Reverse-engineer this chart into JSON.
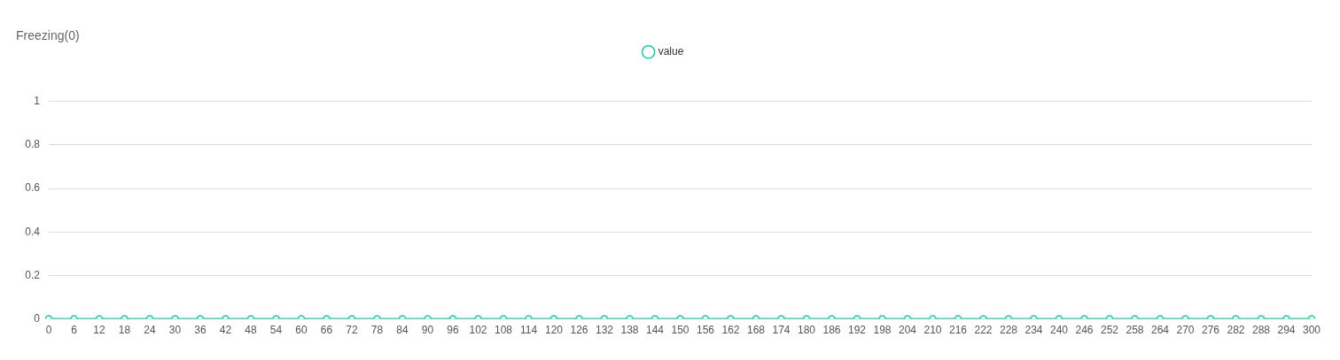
{
  "chart_data": {
    "type": "line",
    "title": "Freezing(0)",
    "categories": [
      "0",
      "6",
      "12",
      "18",
      "24",
      "30",
      "36",
      "42",
      "48",
      "54",
      "60",
      "66",
      "72",
      "78",
      "84",
      "90",
      "96",
      "102",
      "108",
      "114",
      "120",
      "126",
      "132",
      "138",
      "144",
      "150",
      "156",
      "162",
      "168",
      "174",
      "180",
      "186",
      "192",
      "198",
      "204",
      "210",
      "216",
      "222",
      "228",
      "234",
      "240",
      "246",
      "252",
      "258",
      "264",
      "270",
      "276",
      "282",
      "288",
      "294",
      "300"
    ],
    "series": [
      {
        "name": "value",
        "color": "#1fc6a2",
        "values": [
          0,
          0,
          0,
          0,
          0,
          0,
          0,
          0,
          0,
          0,
          0,
          0,
          0,
          0,
          0,
          0,
          0,
          0,
          0,
          0,
          0,
          0,
          0,
          0,
          0,
          0,
          0,
          0,
          0,
          0,
          0,
          0,
          0,
          0,
          0,
          0,
          0,
          0,
          0,
          0,
          0,
          0,
          0,
          0,
          0,
          0,
          0,
          0,
          0,
          0,
          0
        ]
      }
    ],
    "ylim": [
      0,
      1
    ],
    "yticks": [
      0,
      0.2,
      0.4,
      0.6,
      0.8,
      1
    ],
    "grid": "y",
    "legend": "top",
    "marker": "circle",
    "line_style": "solid"
  }
}
